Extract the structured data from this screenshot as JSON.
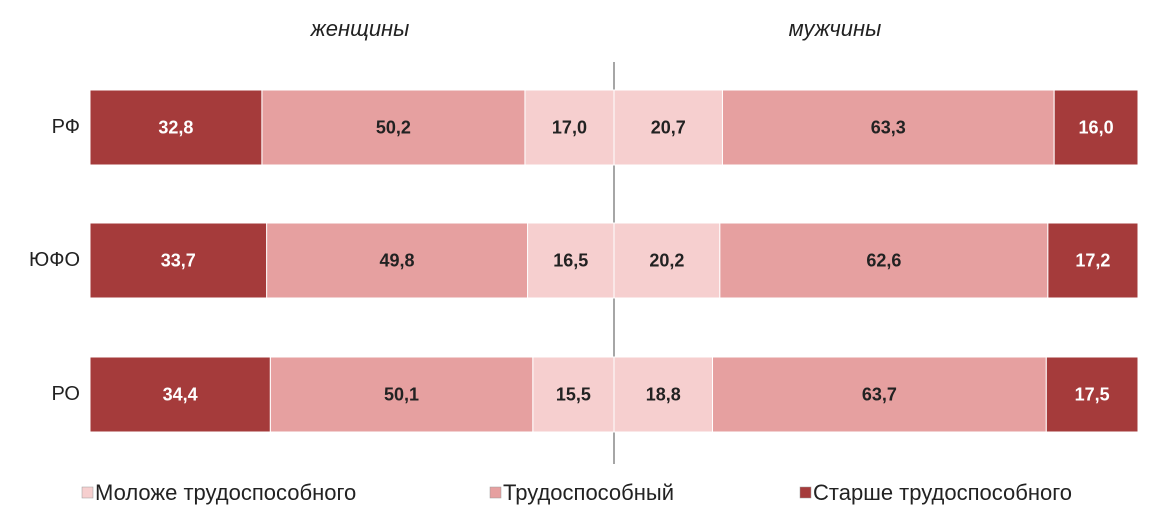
{
  "chart_data": {
    "type": "diverging_bar",
    "groups": [
      "женщины",
      "мужчины"
    ],
    "categories": [
      "РФ",
      "ЮФО",
      "РО"
    ],
    "xlim": [
      0,
      100
    ],
    "series": [
      {
        "name": "Моложе трудоспособного",
        "color": "#f6cfcf",
        "women": [
          17.0,
          16.5,
          15.5
        ],
        "women_value_labels": [
          "17,0",
          "16,5",
          "15,5"
        ],
        "men": [
          20.7,
          20.2,
          18.8
        ],
        "men_value_labels": [
          "20,7",
          "20,2",
          "18,8"
        ]
      },
      {
        "name": "Трудоспособный",
        "color": "#e6a0a0",
        "women": [
          50.2,
          49.8,
          50.1
        ],
        "women_value_labels": [
          "50,2",
          "49,8",
          "50,1"
        ],
        "men": [
          63.3,
          62.6,
          63.7
        ],
        "men_value_labels": [
          "63,3",
          "62,6",
          "63,7"
        ]
      },
      {
        "name": "Старше трудоспособного",
        "color": "#a53b3b",
        "women": [
          32.8,
          33.7,
          34.4
        ],
        "women_value_labels": [
          "32,8",
          "33,7",
          "34,4"
        ],
        "men": [
          16.0,
          17.2,
          17.5
        ],
        "men_value_labels": [
          "16,0",
          "17,2",
          "17,5"
        ]
      }
    ]
  }
}
